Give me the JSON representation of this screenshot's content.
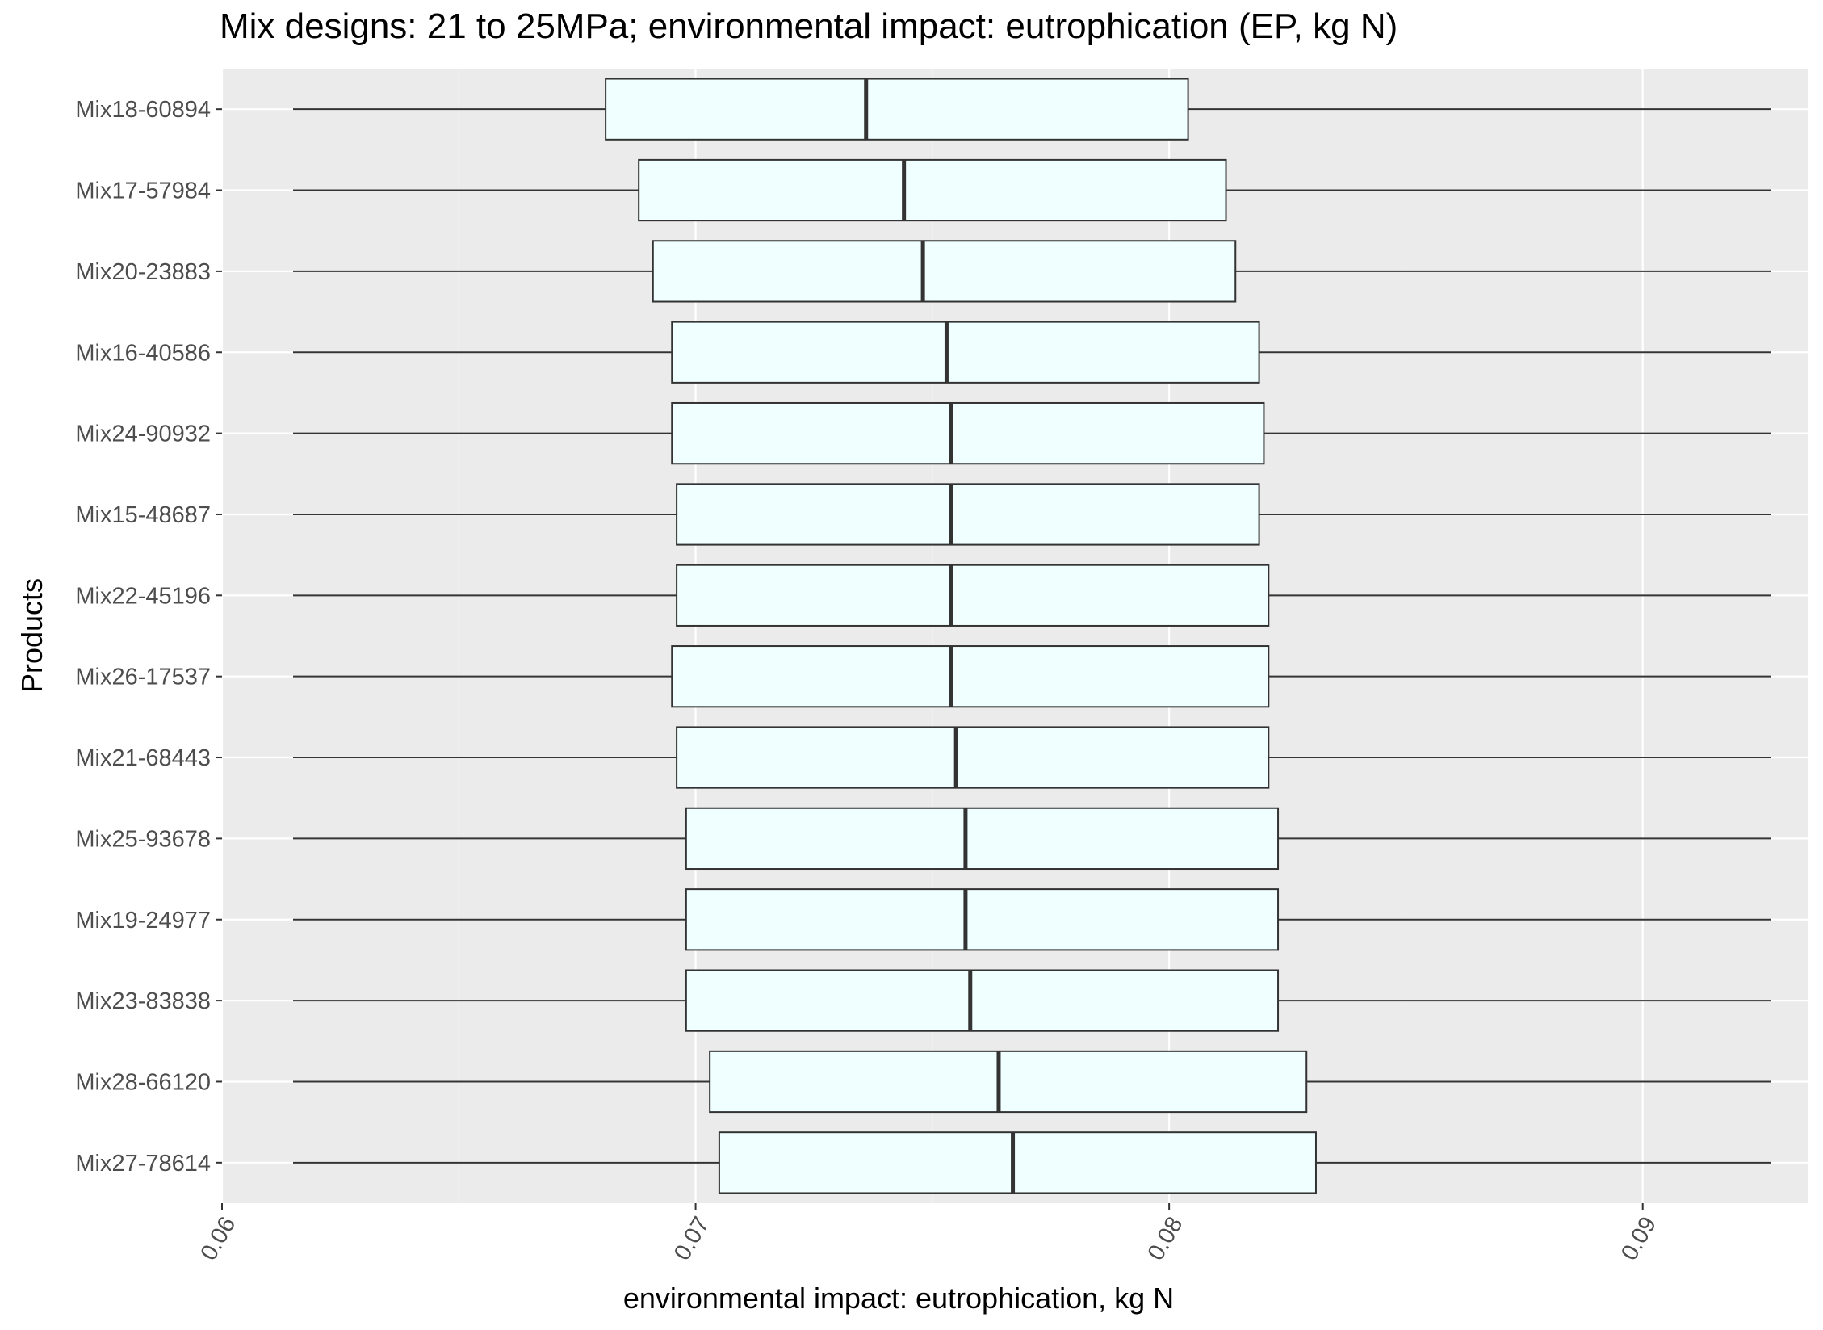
{
  "chart_data": {
    "type": "boxplot",
    "orientation": "horizontal",
    "title": "Mix designs: 21 to 25MPa; environmental impact: eutrophication (EP, kg N)",
    "xlabel": "environmental impact: eutrophication, kg N",
    "ylabel": "Products",
    "xlim": [
      0.06,
      0.0935
    ],
    "x_ticks": [
      "0.06",
      "0.07",
      "0.08",
      "0.09"
    ],
    "grid": true,
    "colors": {
      "panel_background": "#ebebeb",
      "grid_major": "#ffffff",
      "grid_minor": "#f5f5f5",
      "box_fill": "#f0ffff",
      "box_stroke": "#333333",
      "tick_label": "#4d4d4d"
    },
    "categories": [
      "Mix18-60894",
      "Mix17-57984",
      "Mix20-23883",
      "Mix16-40586",
      "Mix24-90932",
      "Mix15-48687",
      "Mix22-45196",
      "Mix26-17537",
      "Mix21-68443",
      "Mix25-93678",
      "Mix19-24977",
      "Mix23-83838",
      "Mix28-66120",
      "Mix27-78614"
    ],
    "boxes": [
      {
        "min": 0.0615,
        "q1": 0.0681,
        "median": 0.0736,
        "q3": 0.0804,
        "max": 0.0927
      },
      {
        "min": 0.0615,
        "q1": 0.0688,
        "median": 0.0744,
        "q3": 0.0812,
        "max": 0.0927
      },
      {
        "min": 0.0615,
        "q1": 0.0691,
        "median": 0.0748,
        "q3": 0.0814,
        "max": 0.0927
      },
      {
        "min": 0.0615,
        "q1": 0.0695,
        "median": 0.0753,
        "q3": 0.0819,
        "max": 0.0927
      },
      {
        "min": 0.0615,
        "q1": 0.0695,
        "median": 0.0754,
        "q3": 0.082,
        "max": 0.0927
      },
      {
        "min": 0.0615,
        "q1": 0.0696,
        "median": 0.0754,
        "q3": 0.0819,
        "max": 0.0927
      },
      {
        "min": 0.0615,
        "q1": 0.0696,
        "median": 0.0754,
        "q3": 0.0821,
        "max": 0.0927
      },
      {
        "min": 0.0615,
        "q1": 0.0695,
        "median": 0.0754,
        "q3": 0.0821,
        "max": 0.0927
      },
      {
        "min": 0.0615,
        "q1": 0.0696,
        "median": 0.0755,
        "q3": 0.0821,
        "max": 0.0927
      },
      {
        "min": 0.0615,
        "q1": 0.0698,
        "median": 0.0757,
        "q3": 0.0823,
        "max": 0.0927
      },
      {
        "min": 0.0615,
        "q1": 0.0698,
        "median": 0.0757,
        "q3": 0.0823,
        "max": 0.0927
      },
      {
        "min": 0.0615,
        "q1": 0.0698,
        "median": 0.0758,
        "q3": 0.0823,
        "max": 0.0927
      },
      {
        "min": 0.0615,
        "q1": 0.0703,
        "median": 0.0764,
        "q3": 0.0829,
        "max": 0.0927
      },
      {
        "min": 0.0615,
        "q1": 0.0705,
        "median": 0.0767,
        "q3": 0.0831,
        "max": 0.0927
      }
    ]
  }
}
